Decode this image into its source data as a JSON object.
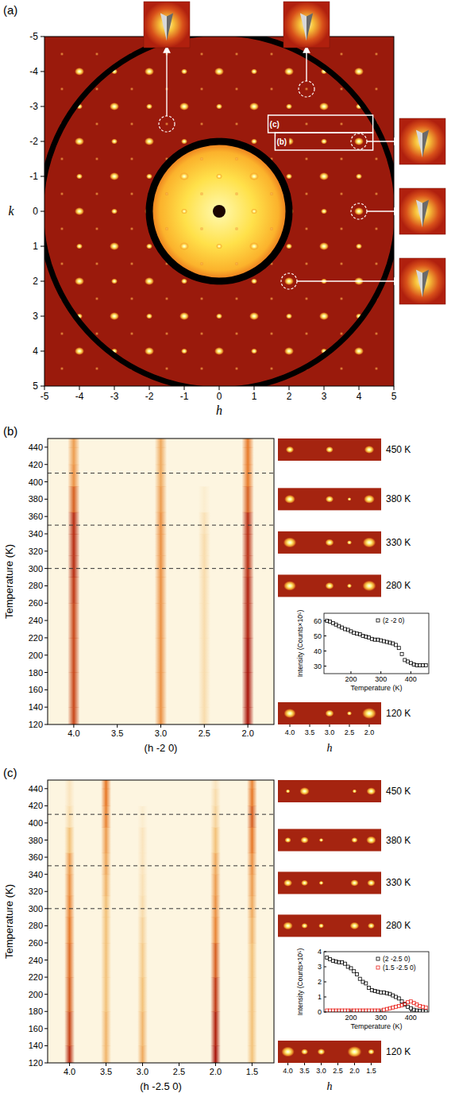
{
  "chart_data": [
    {
      "type": "diffraction",
      "panel": "(a)",
      "x_label": "h",
      "y_label": "k",
      "xlim": [
        -5,
        5
      ],
      "ylim": [
        5,
        -5
      ],
      "xticks": [
        -5,
        -4,
        -3,
        -2,
        -1,
        0,
        1,
        2,
        3,
        4,
        5
      ],
      "yticks": [
        -5,
        -4,
        -3,
        -2,
        -1,
        0,
        1,
        2,
        3,
        4,
        5
      ],
      "rings": [
        2,
        5.1
      ],
      "spots": {
        "h": [
          -4,
          -3,
          -2,
          -1,
          0,
          1,
          2,
          3,
          4
        ],
        "k": [
          -4,
          -3,
          -2,
          -1,
          0,
          1,
          2,
          3,
          4
        ]
      },
      "half_spots": {
        "h": [
          -4.5,
          -3.5,
          -2.5,
          -1.5,
          -0.5,
          0.5,
          1.5,
          2.5,
          3.5,
          4.5
        ],
        "k": [
          -4.5,
          -3.5,
          -2.5,
          -1.5,
          -0.5,
          0.5,
          1.5,
          2.5,
          3.5,
          4.5
        ]
      },
      "boxes": [
        {
          "label": "(c)",
          "h": [
            1.4,
            4.4
          ],
          "k": -2.5
        },
        {
          "label": "(b)",
          "h": [
            1.6,
            4.4
          ],
          "k": -2
        }
      ],
      "highlighted": [
        {
          "h": -1.5,
          "k": -2.5
        },
        {
          "h": 2.5,
          "k": -3.5
        },
        {
          "h": 4,
          "k": -2
        },
        {
          "h": 4,
          "k": 0
        },
        {
          "h": 2,
          "k": 2
        }
      ]
    },
    {
      "type": "intensity_map",
      "panel": "(b)",
      "x_label": "(h -2 0)",
      "y_label": "Temperature (K)",
      "xlim": [
        4.3,
        1.7
      ],
      "ylim": [
        120,
        450
      ],
      "xticks": [
        {
          "value": 4,
          "label": "4.0"
        },
        {
          "value": 3.5,
          "label": "3.5"
        },
        {
          "value": 3,
          "label": "3.0"
        },
        {
          "value": 2.5,
          "label": "2.5"
        },
        {
          "value": 2,
          "label": "2.0"
        }
      ],
      "yticks": [
        120,
        140,
        160,
        180,
        200,
        220,
        240,
        260,
        280,
        300,
        320,
        340,
        360,
        380,
        400,
        420,
        440
      ],
      "dashed_lines": [
        300,
        350,
        410
      ],
      "temperatures": [
        120,
        160,
        200,
        240,
        280,
        300,
        330,
        350,
        380,
        410,
        430,
        450
      ],
      "peaks": [
        {
          "h": 4,
          "intensity": [
            0.8,
            0.8,
            0.8,
            0.8,
            0.85,
            0.9,
            0.9,
            0.9,
            0.7,
            0.5,
            0.45,
            0.45
          ]
        },
        {
          "h": 3,
          "intensity": [
            0.5,
            0.5,
            0.5,
            0.5,
            0.5,
            0.5,
            0.5,
            0.5,
            0.45,
            0.4,
            0.4,
            0.4
          ]
        },
        {
          "h": 2.5,
          "intensity": [
            0.15,
            0.15,
            0.15,
            0.15,
            0.15,
            0.15,
            0.15,
            0.12,
            0.05,
            0,
            0,
            0
          ]
        },
        {
          "h": 2,
          "intensity": [
            1,
            1,
            1,
            0.95,
            0.95,
            0.9,
            0.9,
            0.9,
            0.7,
            0.6,
            0.6,
            0.6
          ]
        }
      ],
      "snapshots": [
        {
          "value": 450,
          "label": "450 K"
        },
        {
          "value": 380,
          "label": "380 K"
        },
        {
          "value": 330,
          "label": "330 K"
        },
        {
          "value": 280,
          "label": "280 K"
        },
        {
          "value": 120,
          "label": "120 K"
        }
      ],
      "snapshot_x_label": "h",
      "inset": {
        "type": "line",
        "x_label": "Temperature (K)",
        "y_label": "Intensity (Counts×10⁵)",
        "xlim": [
          110,
          460
        ],
        "ylim": [
          25,
          65
        ],
        "xticks": [
          200,
          300,
          400
        ],
        "yticks": [
          30,
          40,
          50,
          60
        ],
        "legend": "upper right",
        "x": [
          120,
          130,
          140,
          150,
          160,
          170,
          180,
          190,
          200,
          210,
          220,
          230,
          240,
          250,
          260,
          270,
          280,
          290,
          300,
          310,
          320,
          330,
          340,
          350,
          360,
          370,
          380,
          390,
          400,
          410,
          420,
          430,
          440,
          450
        ],
        "series": [
          {
            "name": "(2 -2 0)",
            "color": "#000000",
            "marker": "square",
            "values": [
              60,
              59.5,
              58.5,
              57.5,
              56.5,
              55.5,
              54.5,
              54,
              53,
              52,
              51.5,
              51,
              50,
              49.5,
              49,
              48,
              47.5,
              47.5,
              47,
              46.5,
              46,
              45.5,
              45,
              44,
              42,
              38,
              34,
              33,
              32,
              31,
              30.5,
              30.5,
              30.5,
              30.5
            ]
          }
        ]
      }
    },
    {
      "type": "intensity_map",
      "panel": "(c)",
      "x_label": "(h -2.5 0)",
      "y_label": "Temperature (K)",
      "xlim": [
        4.3,
        1.2
      ],
      "ylim": [
        120,
        450
      ],
      "xticks": [
        {
          "value": 4,
          "label": "4.0"
        },
        {
          "value": 3.5,
          "label": "3.5"
        },
        {
          "value": 3,
          "label": "3.0"
        },
        {
          "value": 2.5,
          "label": "2.5"
        },
        {
          "value": 2,
          "label": "2.0"
        },
        {
          "value": 1.5,
          "label": "1.5"
        }
      ],
      "yticks": [
        120,
        140,
        160,
        180,
        200,
        220,
        240,
        260,
        280,
        300,
        320,
        340,
        360,
        380,
        400,
        420,
        440
      ],
      "dashed_lines": [
        300,
        350,
        410
      ],
      "temperatures": [
        120,
        160,
        200,
        240,
        280,
        300,
        330,
        350,
        380,
        410,
        430,
        450
      ],
      "peaks": [
        {
          "h": 4,
          "intensity": [
            0.9,
            0.8,
            0.7,
            0.65,
            0.6,
            0.55,
            0.5,
            0.45,
            0.3,
            0.15,
            0.1,
            0.1
          ]
        },
        {
          "h": 3.5,
          "intensity": [
            0.35,
            0.35,
            0.3,
            0.3,
            0.3,
            0.3,
            0.35,
            0.4,
            0.45,
            0.55,
            0.6,
            0.6
          ]
        },
        {
          "h": 3,
          "intensity": [
            0.4,
            0.35,
            0.3,
            0.25,
            0.2,
            0.15,
            0.12,
            0.1,
            0.1,
            0.05,
            0,
            0
          ]
        },
        {
          "h": 2,
          "intensity": [
            1,
            0.95,
            0.85,
            0.7,
            0.55,
            0.5,
            0.45,
            0.4,
            0.3,
            0.2,
            0.15,
            0.1
          ]
        },
        {
          "h": 1.5,
          "intensity": [
            0.3,
            0.3,
            0.3,
            0.3,
            0.35,
            0.4,
            0.45,
            0.5,
            0.6,
            0.7,
            0.6,
            0.55
          ]
        }
      ],
      "snapshots": [
        {
          "value": 450,
          "label": "450 K"
        },
        {
          "value": 380,
          "label": "380 K"
        },
        {
          "value": 330,
          "label": "330 K"
        },
        {
          "value": 280,
          "label": "280 K"
        },
        {
          "value": 120,
          "label": "120 K"
        }
      ],
      "snapshot_x_label": "h",
      "inset": {
        "type": "line",
        "x_label": "Temperature (K)",
        "y_label": "Intensity (Counts×10⁵)",
        "xlim": [
          110,
          460
        ],
        "ylim": [
          0,
          4
        ],
        "xticks": [
          200,
          300,
          400
        ],
        "yticks": [
          0,
          1,
          2,
          3,
          4
        ],
        "legend": "upper right",
        "x": [
          120,
          130,
          140,
          150,
          160,
          170,
          180,
          190,
          200,
          210,
          220,
          230,
          240,
          250,
          260,
          270,
          280,
          290,
          300,
          310,
          320,
          330,
          340,
          350,
          360,
          370,
          380,
          390,
          400,
          410,
          420,
          430,
          440,
          450
        ],
        "series": [
          {
            "name": "(2 -2.5 0)",
            "color": "#000000",
            "marker": "square",
            "values": [
              3.6,
              3.5,
              3.4,
              3.35,
              3.3,
              3.3,
              3.2,
              3.0,
              2.9,
              2.7,
              2.5,
              2.2,
              2.0,
              1.9,
              1.6,
              1.45,
              1.4,
              1.35,
              1.3,
              1.3,
              1.25,
              1.2,
              1.1,
              1.0,
              0.9,
              0.7,
              0.5,
              0.35,
              0.25,
              0.15,
              0.1,
              0.08,
              0.05,
              0.05
            ]
          },
          {
            "name": "(1.5 -2.5 0)",
            "color": "#e8201a",
            "marker": "square",
            "values": [
              0.1,
              0.1,
              0.1,
              0.1,
              0.1,
              0.1,
              0.1,
              0.1,
              0.1,
              0.1,
              0.1,
              0.1,
              0.1,
              0.1,
              0.1,
              0.1,
              0.1,
              0.1,
              0.1,
              0.15,
              0.2,
              0.25,
              0.3,
              0.35,
              0.4,
              0.45,
              0.55,
              0.65,
              0.7,
              0.6,
              0.5,
              0.4,
              0.35,
              0.3
            ]
          }
        ]
      }
    }
  ]
}
